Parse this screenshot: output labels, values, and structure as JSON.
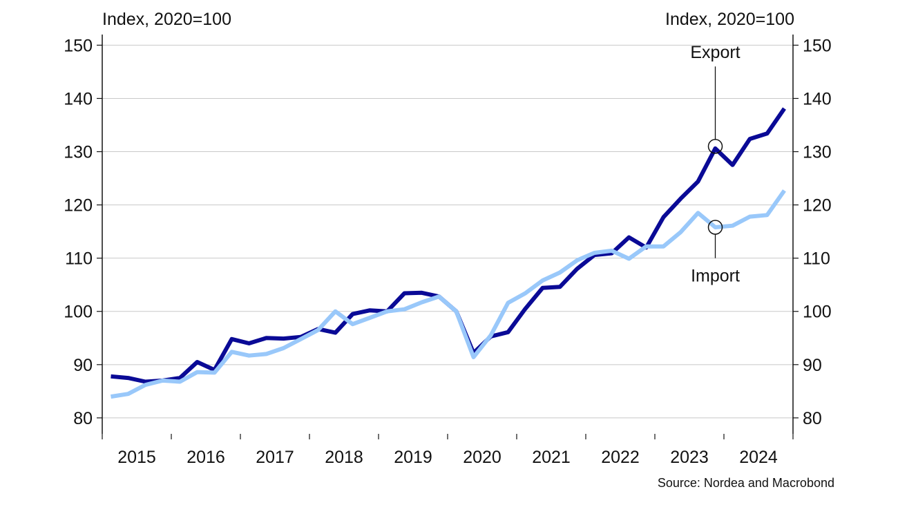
{
  "chart_data": {
    "type": "line",
    "ylabel_left": "Index, 2020=100",
    "ylabel_right": "Index, 2020=100",
    "source": "Source: Nordea and Macrobond",
    "ylim": [
      77,
      152
    ],
    "yticks": [
      80,
      90,
      100,
      110,
      120,
      130,
      140,
      150
    ],
    "x_start": 2015.0,
    "x_end": 2025.0,
    "year_labels": [
      "2015",
      "2016",
      "2017",
      "2018",
      "2019",
      "2020",
      "2021",
      "2022",
      "2023",
      "2024"
    ],
    "grid": true,
    "series": [
      {
        "name": "Export",
        "color": "#0a0a96",
        "x": [
          2015.125,
          2015.375,
          2015.625,
          2015.875,
          2016.125,
          2016.375,
          2016.625,
          2016.875,
          2017.125,
          2017.375,
          2017.625,
          2017.875,
          2018.125,
          2018.375,
          2018.625,
          2018.875,
          2019.125,
          2019.375,
          2019.625,
          2019.875,
          2020.125,
          2020.375,
          2020.625,
          2020.875,
          2021.125,
          2021.375,
          2021.625,
          2021.875,
          2022.125,
          2022.375,
          2022.625,
          2022.875,
          2023.125,
          2023.375,
          2023.625,
          2023.875,
          2024.125,
          2024.375,
          2024.625,
          2024.875
        ],
        "values": [
          87.8,
          87.5,
          86.8,
          87.0,
          87.5,
          90.5,
          89.0,
          94.8,
          94.0,
          95.0,
          94.9,
          95.2,
          96.7,
          96.0,
          99.5,
          100.2,
          100.0,
          103.4,
          103.5,
          102.8,
          100.0,
          92.2,
          95.3,
          96.1,
          100.5,
          104.4,
          104.6,
          108.0,
          110.6,
          110.9,
          113.9,
          112.0,
          117.7,
          121.2,
          124.4,
          130.6,
          127.5,
          132.4,
          133.4,
          138.1
        ]
      },
      {
        "name": "Import",
        "color": "#99c8fa",
        "x": [
          2015.125,
          2015.375,
          2015.625,
          2015.875,
          2016.125,
          2016.375,
          2016.625,
          2016.875,
          2017.125,
          2017.375,
          2017.625,
          2017.875,
          2018.125,
          2018.375,
          2018.625,
          2018.875,
          2019.125,
          2019.375,
          2019.625,
          2019.875,
          2020.125,
          2020.375,
          2020.625,
          2020.875,
          2021.125,
          2021.375,
          2021.625,
          2021.875,
          2022.125,
          2022.375,
          2022.625,
          2022.875,
          2023.125,
          2023.375,
          2023.625,
          2023.875,
          2024.125,
          2024.375,
          2024.625,
          2024.875
        ],
        "values": [
          84.0,
          84.5,
          86.2,
          87.0,
          86.8,
          88.6,
          88.5,
          92.4,
          91.7,
          92.0,
          93.1,
          94.8,
          96.5,
          100.0,
          97.6,
          98.8,
          100.0,
          100.4,
          101.7,
          102.8,
          100.0,
          91.4,
          95.5,
          101.6,
          103.4,
          105.8,
          107.3,
          109.6,
          111.0,
          111.4,
          109.9,
          112.2,
          112.2,
          114.9,
          118.5,
          115.8,
          116.1,
          117.8,
          118.1,
          122.7
        ]
      }
    ],
    "annotations": [
      {
        "text": "Export",
        "x": 2023.875,
        "y": 131.0,
        "label_y": 146.0
      },
      {
        "text": "Import",
        "x": 2023.875,
        "y": 115.8,
        "label_y": 110.0
      }
    ]
  }
}
